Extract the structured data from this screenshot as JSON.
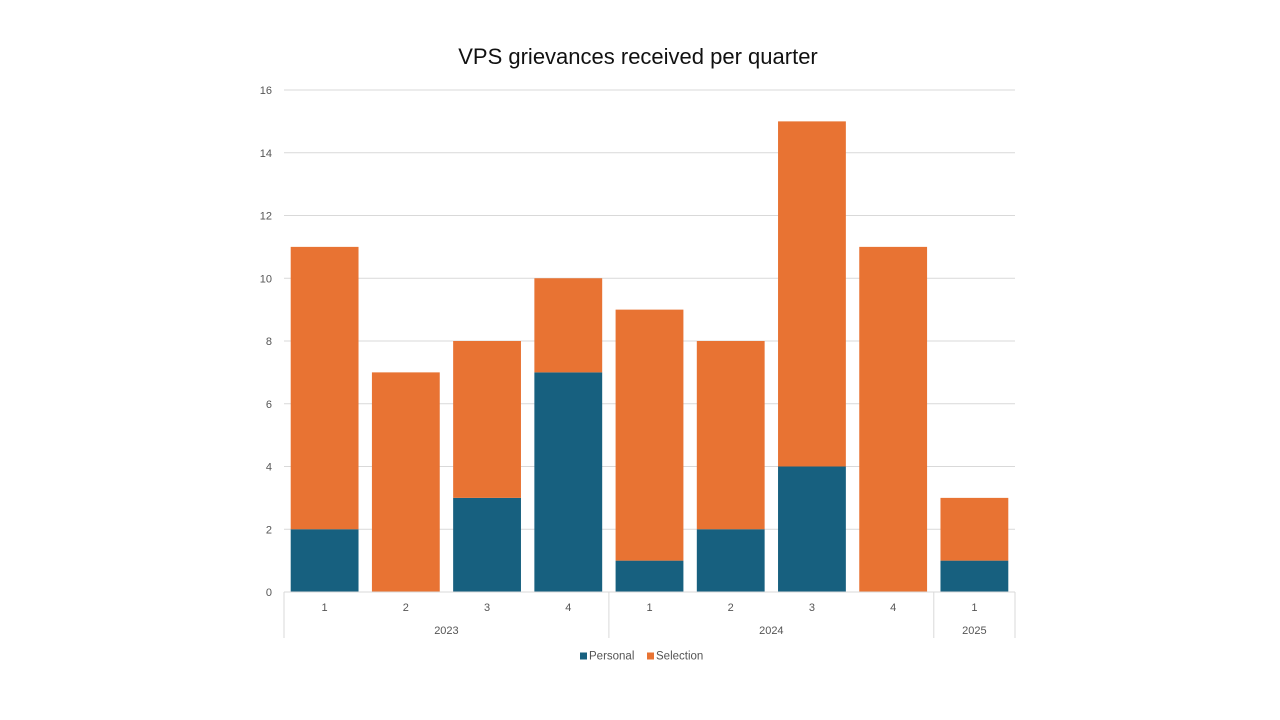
{
  "chart_data": {
    "type": "bar",
    "stacked": true,
    "title": "VPS grievances received per quarter",
    "xlabel": "",
    "ylabel": "",
    "ylim": [
      0,
      16
    ],
    "yticks": [
      0,
      2,
      4,
      6,
      8,
      10,
      12,
      14,
      16
    ],
    "grid": true,
    "legend_position": "bottom",
    "categories": [
      "1",
      "2",
      "3",
      "4",
      "1",
      "2",
      "3",
      "4",
      "1"
    ],
    "groups": [
      {
        "label": "2023",
        "count": 4
      },
      {
        "label": "2024",
        "count": 4
      },
      {
        "label": "2025",
        "count": 1
      }
    ],
    "series": [
      {
        "name": "Personal",
        "color": "#17607f",
        "values": [
          2,
          0,
          3,
          7,
          1,
          2,
          4,
          0,
          1
        ]
      },
      {
        "name": "Selection",
        "color": "#e87333",
        "values": [
          9,
          7,
          5,
          3,
          8,
          6,
          11,
          11,
          2
        ]
      }
    ]
  }
}
